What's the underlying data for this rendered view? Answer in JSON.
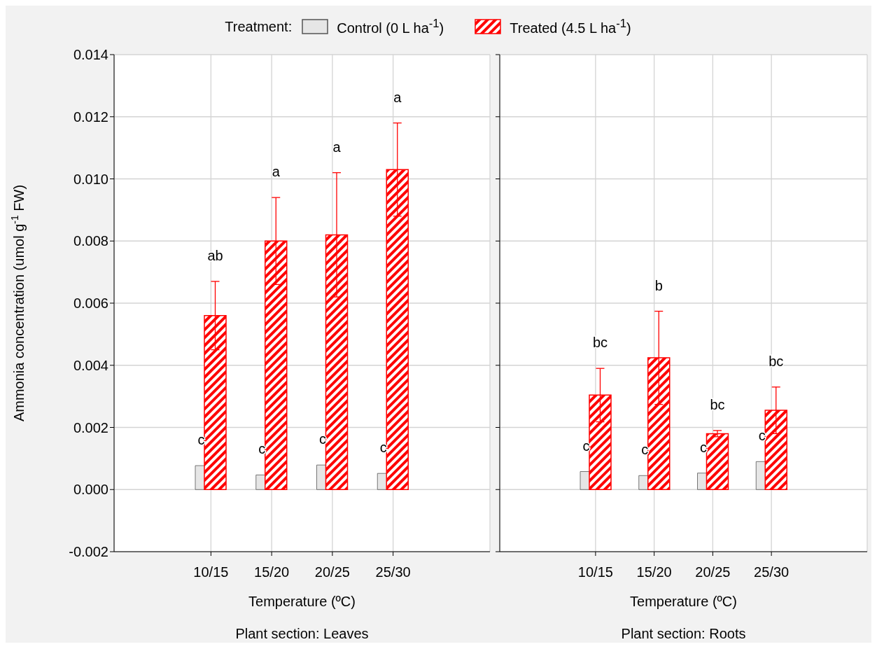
{
  "chart_data": [
    {
      "type": "bar",
      "title": "Plant section: Leaves",
      "xlabel": "Temperature (ºC)",
      "ylabel": "Ammonia concentration (umol g$^{-1}$ FW)",
      "legend_title": "Treatment:",
      "legend": "top",
      "grid": true,
      "categories": [
        "10/15",
        "15/20",
        "20/25",
        "25/30"
      ],
      "series": [
        {
          "name": "Control   (0 L ha$^{-1}$)",
          "color": "#e6e6e6",
          "values": [
            0.00077,
            0.00047,
            0.00079,
            0.00052
          ]
        },
        {
          "name": "Treated (4.5 L ha$^{-1}$)",
          "color": "#ff0000",
          "values": [
            0.0056,
            0.008,
            0.0082,
            0.0103
          ],
          "errors": [
            0.0011,
            0.0014,
            0.002,
            0.0015
          ]
        }
      ],
      "ylim": [
        -0.002,
        0.014
      ],
      "yticks": [
        -0.002,
        {
          "value": 0,
          "label": "0.000"
        },
        0.002,
        0.004,
        0.006,
        0.008,
        {
          "value": 0.01,
          "label": "0.010"
        },
        0.012,
        0.014
      ],
      "annotations": [
        "c",
        "c",
        "c",
        "c",
        "ab",
        "a",
        "a",
        "a"
      ]
    },
    {
      "type": "bar",
      "title": "Plant section: Roots",
      "xlabel": "Temperature (ºC)",
      "grid": true,
      "tick_labels": "x",
      "categories": [
        "10/15",
        "15/20",
        "20/25",
        "25/30"
      ],
      "series": [
        {
          "color": "#e6e6e6",
          "values": [
            0.00058,
            0.00045,
            0.00053,
            0.0009
          ]
        },
        {
          "color": "#ff0000",
          "values": [
            0.00304,
            0.00424,
            0.0018,
            0.00255
          ],
          "errors": [
            0.00086,
            0.0015,
            0.0001,
            0.00075
          ]
        }
      ],
      "ylim": [
        -0.002,
        0.014
      ],
      "yticks": [
        -0.002,
        0,
        0.002,
        0.004,
        0.006,
        0.008,
        0.01,
        0.012,
        0.014
      ],
      "annotations": [
        "c",
        "c",
        "c",
        "c",
        "bc",
        "b",
        "bc",
        "bc"
      ]
    }
  ]
}
